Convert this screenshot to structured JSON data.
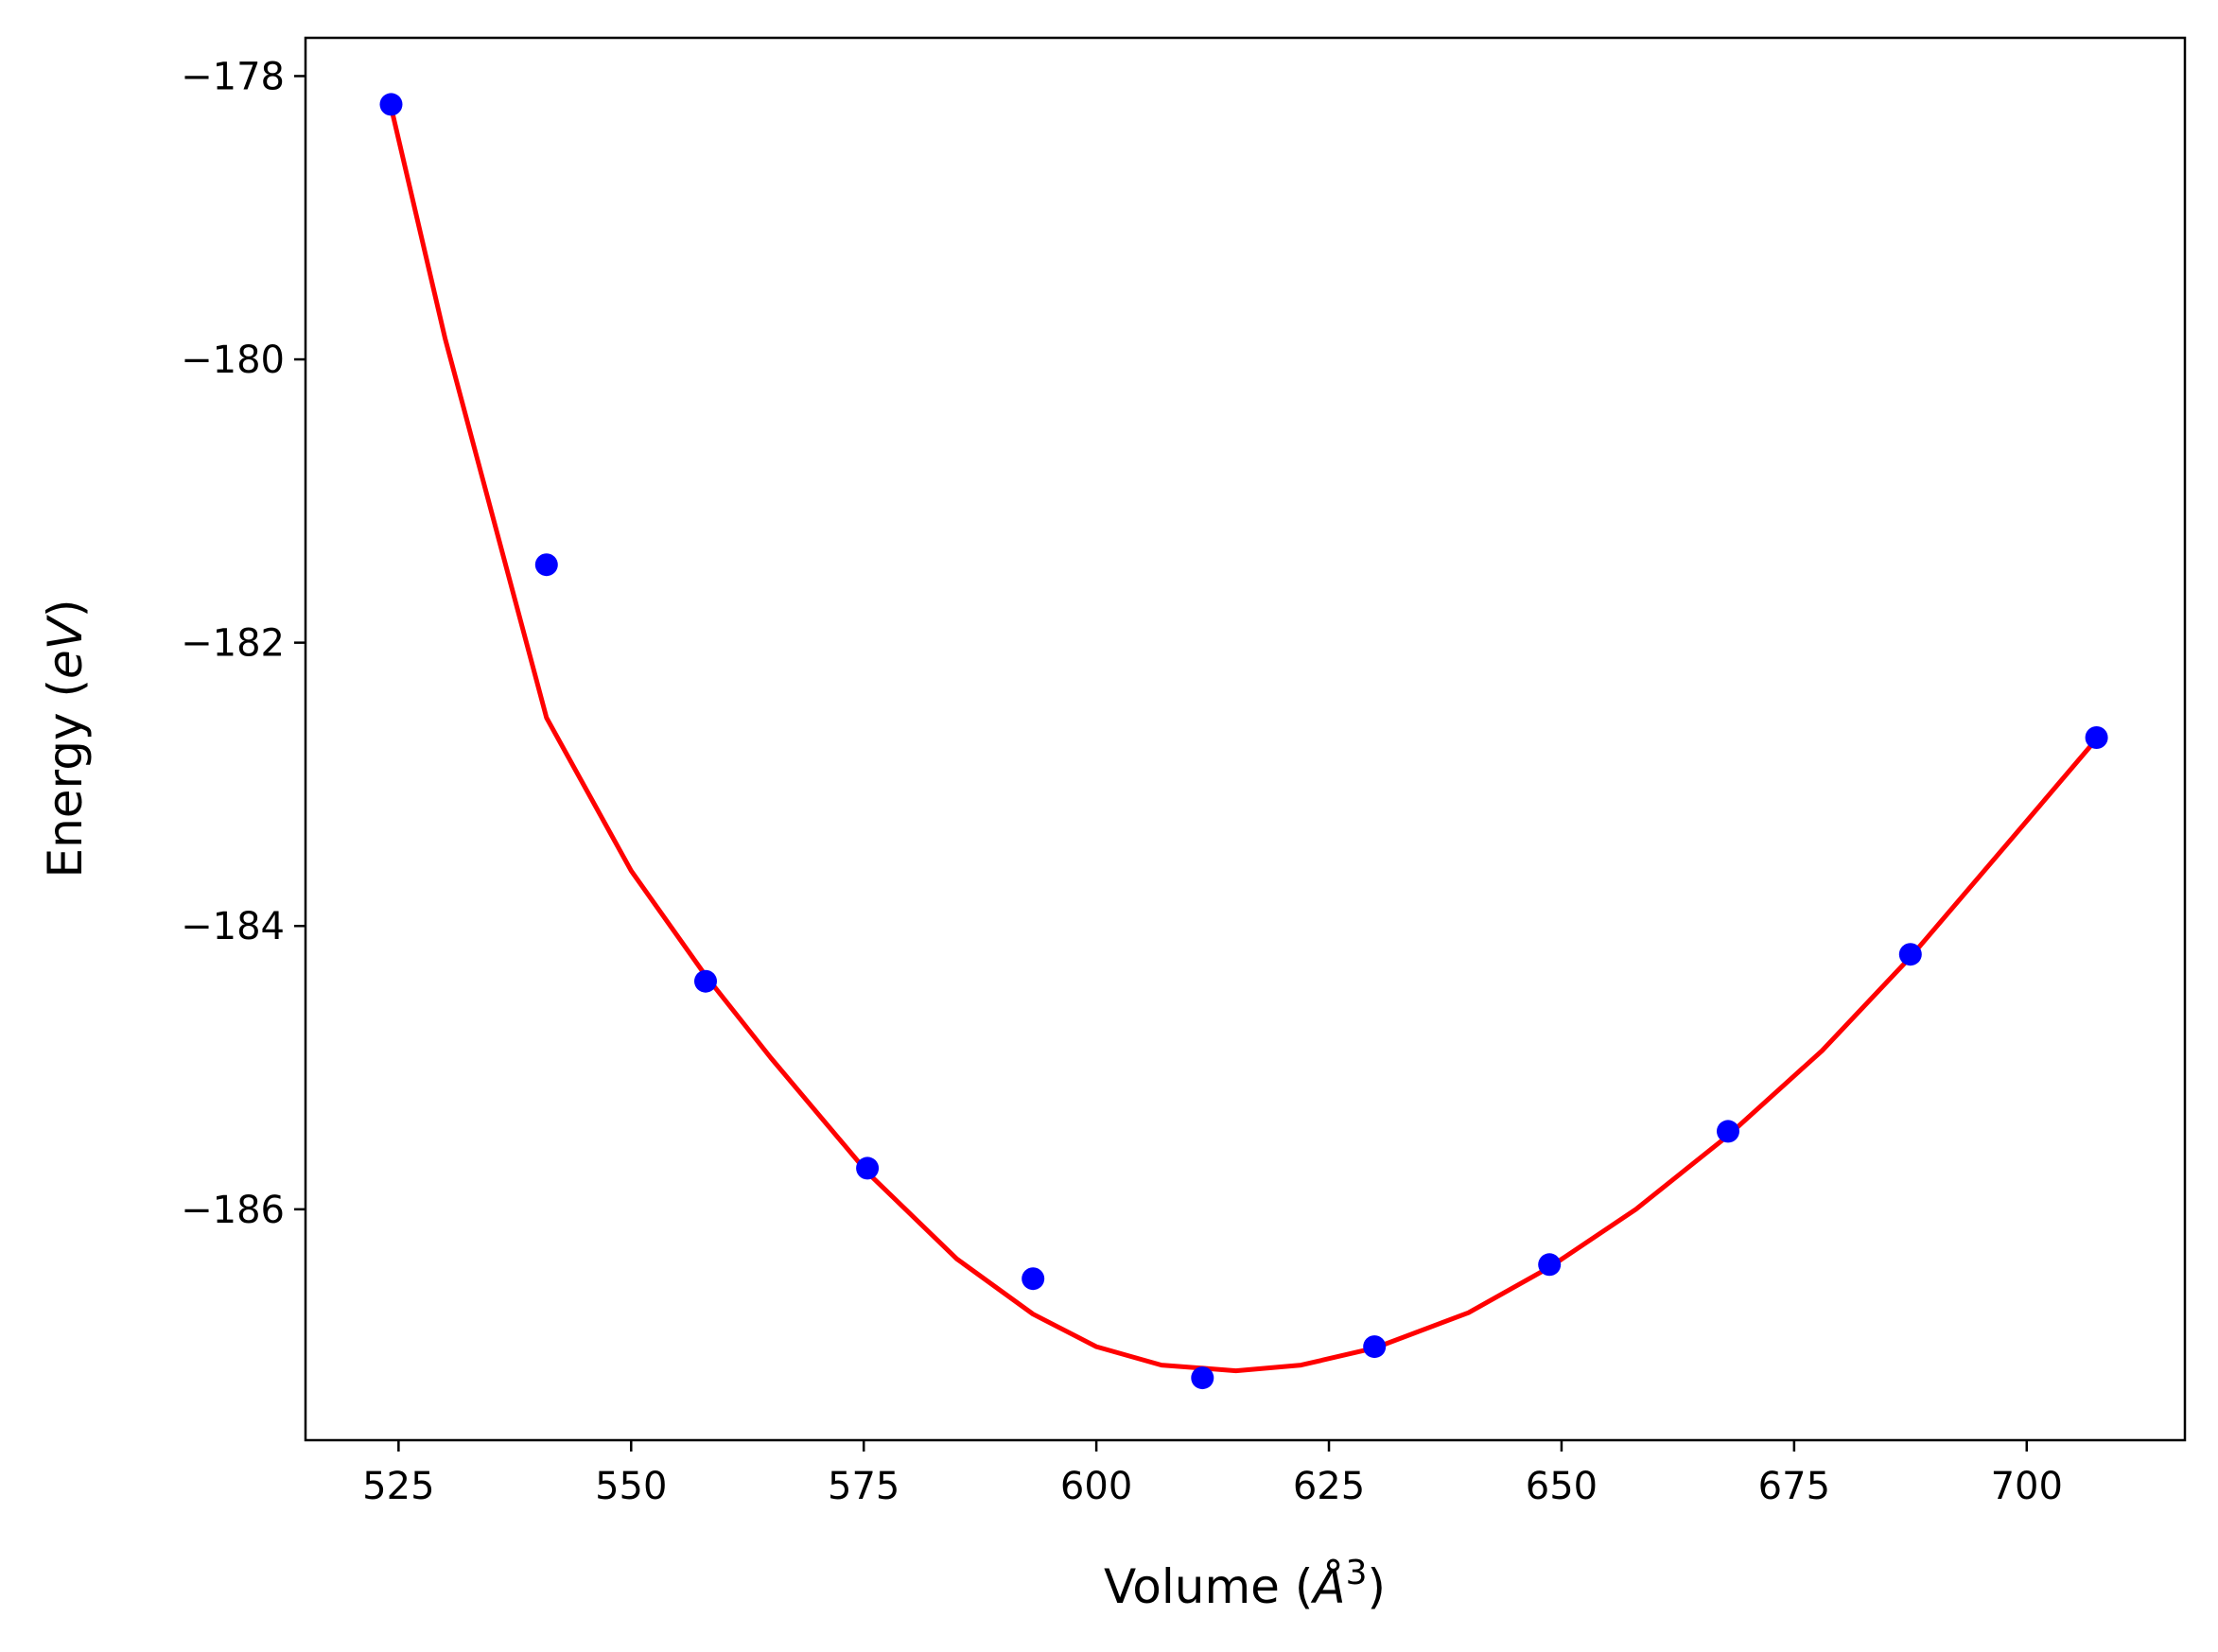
{
  "chart_data": {
    "type": "scatter",
    "xlabel": "Volume (Å³)",
    "xlabel_parts": {
      "text": "Volume (",
      "symbol": "Å",
      "sup": "3",
      "close": ")"
    },
    "ylabel": "Energy (eV)",
    "ylabel_parts": {
      "text": "Energy (",
      "symbol": "eV",
      "close": ")"
    },
    "xlim": [
      515,
      717
    ],
    "ylim": [
      -187.63,
      -177.73
    ],
    "xticks": [
      525,
      550,
      575,
      600,
      625,
      650,
      675,
      700
    ],
    "yticks": [
      -178,
      -180,
      -182,
      -184,
      -186
    ],
    "xtick_labels": [
      "525",
      "550",
      "575",
      "600",
      "625",
      "650",
      "675",
      "700"
    ],
    "ytick_labels": [
      "−178",
      "−180",
      "−182",
      "−184",
      "−186"
    ],
    "grid": false,
    "series": [
      {
        "kind": "points",
        "color": "#0000ff",
        "x": [
          524.2,
          540.9,
          558.0,
          575.4,
          593.2,
          611.4,
          629.9,
          648.7,
          667.9,
          687.5,
          707.5
        ],
        "y": [
          -178.2,
          -181.45,
          -184.39,
          -185.71,
          -186.49,
          -187.19,
          -186.97,
          -186.39,
          -185.45,
          -184.2,
          -182.67
        ]
      },
      {
        "kind": "fit",
        "color": "#ff0000",
        "x": [
          524.2,
          530,
          540.9,
          550,
          558.0,
          565,
          575.4,
          585,
          593.2,
          600,
          607,
          615,
          622,
          629.9,
          640,
          648.7,
          658,
          667.9,
          678,
          687.5,
          697,
          707.5
        ],
        "y": [
          -178.22,
          -179.85,
          -182.53,
          -183.61,
          -184.35,
          -184.93,
          -185.74,
          -186.35,
          -186.74,
          -186.97,
          -187.1,
          -187.14,
          -187.1,
          -186.98,
          -186.73,
          -186.41,
          -186.0,
          -185.48,
          -184.88,
          -184.22,
          -183.49,
          -182.68
        ]
      }
    ]
  }
}
